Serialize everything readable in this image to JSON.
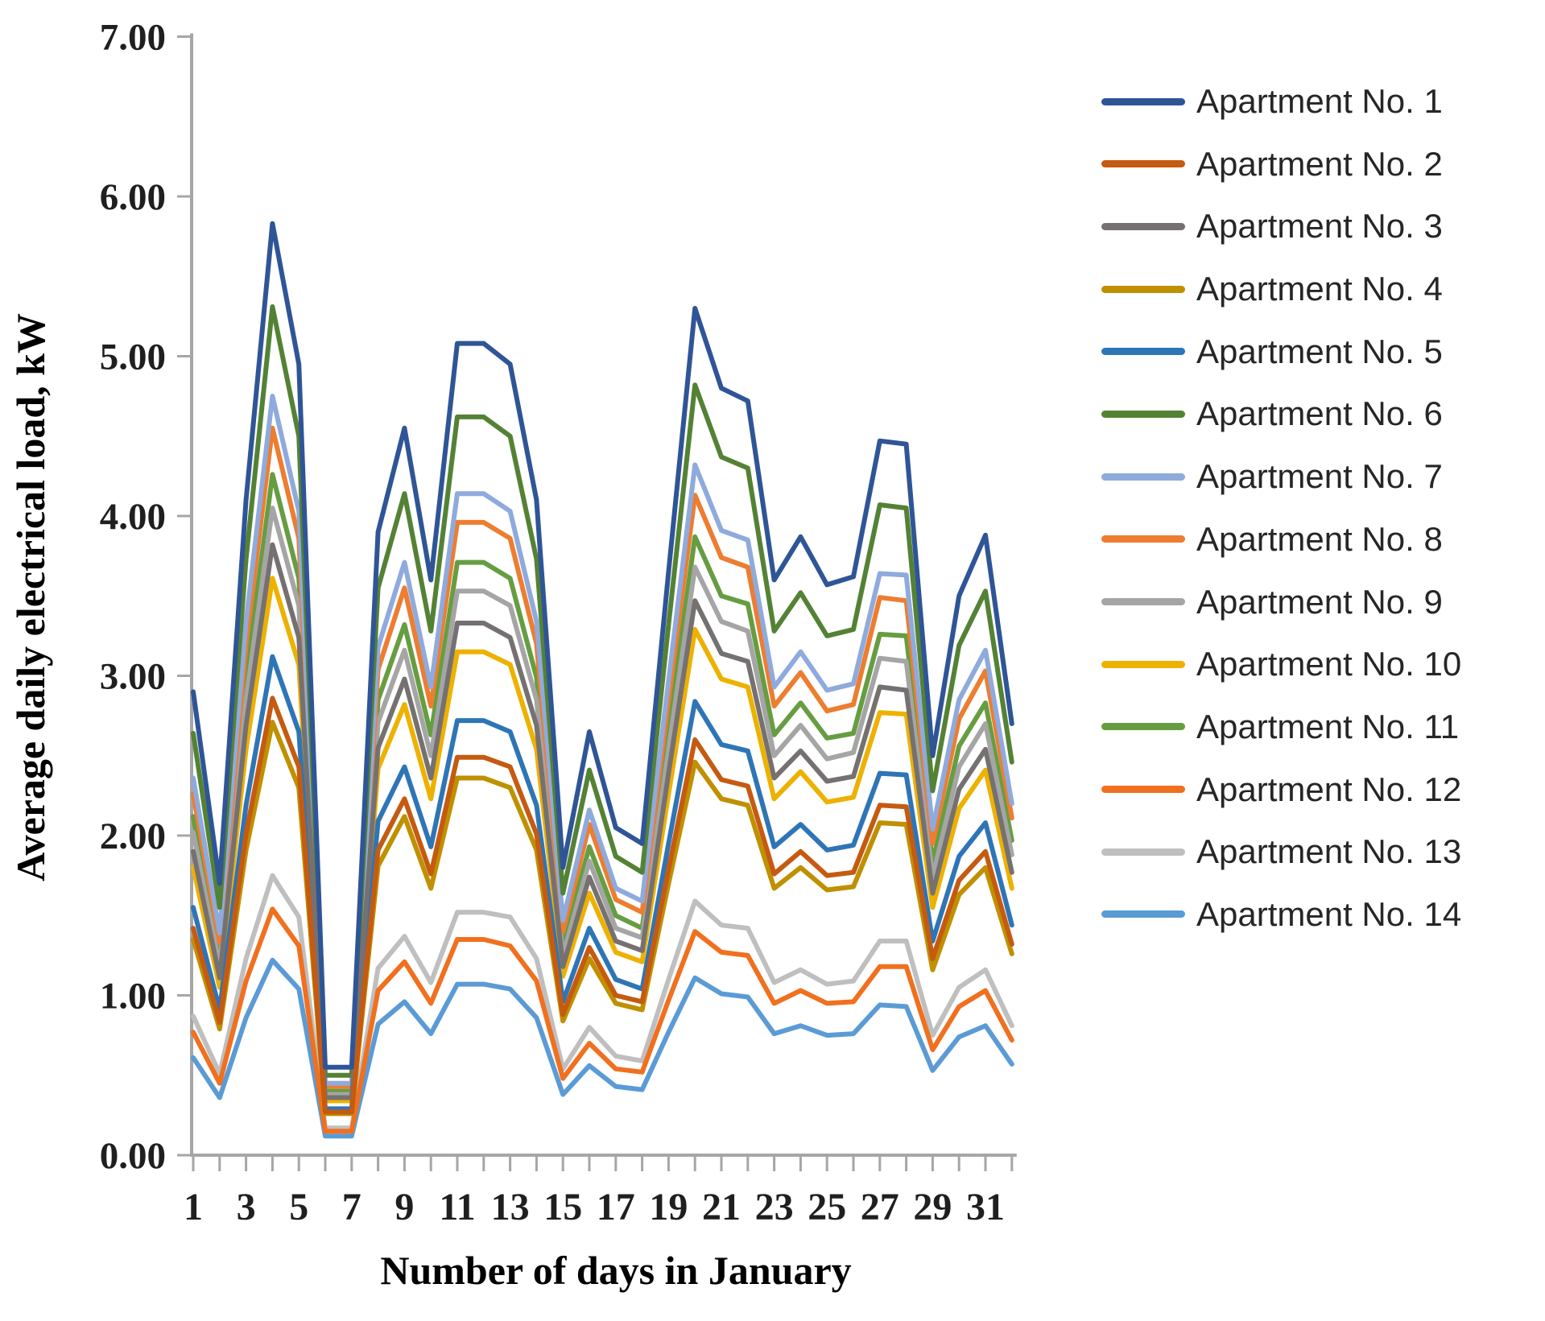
{
  "chart_data": {
    "type": "line",
    "title": "",
    "xlabel": "Number of days in January",
    "ylabel": "Average daily electrical load, kW",
    "x_tick_labels": [
      "1",
      "3",
      "5",
      "7",
      "9",
      "11",
      "13",
      "15",
      "17",
      "19",
      "21",
      "23",
      "25",
      "27",
      "29",
      "31"
    ],
    "y_tick_labels": [
      "0.00",
      "1.00",
      "2.00",
      "3.00",
      "4.00",
      "5.00",
      "6.00",
      "7.00"
    ],
    "ylim": [
      0,
      7
    ],
    "grid": false,
    "legend_position": "right",
    "n_points": 32,
    "axis_color": "#a6a6a6",
    "series": [
      {
        "name": "Apartment No. 1",
        "color": "#2F5597",
        "values": [
          2.9,
          1.7,
          4.1,
          5.83,
          4.95,
          0.55,
          0.55,
          3.9,
          4.55,
          3.6,
          5.08,
          5.08,
          4.95,
          4.1,
          1.8,
          2.65,
          2.05,
          1.95,
          3.65,
          5.3,
          4.8,
          4.72,
          3.6,
          3.87,
          3.57,
          3.62,
          4.47,
          4.45,
          2.5,
          3.5,
          3.88,
          2.7
        ]
      },
      {
        "name": "Apartment No. 2",
        "color": "#C55A11",
        "values": [
          1.42,
          0.83,
          2.01,
          2.86,
          2.43,
          0.27,
          0.27,
          1.91,
          2.23,
          1.76,
          2.49,
          2.49,
          2.43,
          2.01,
          0.88,
          1.3,
          1.0,
          0.96,
          1.79,
          2.6,
          2.35,
          2.31,
          1.76,
          1.9,
          1.75,
          1.77,
          2.19,
          2.18,
          1.23,
          1.72,
          1.9,
          1.32
        ]
      },
      {
        "name": "Apartment No. 3",
        "color": "#767171",
        "values": [
          1.9,
          1.11,
          2.69,
          3.82,
          3.24,
          0.36,
          0.36,
          2.55,
          2.98,
          2.36,
          3.33,
          3.33,
          3.24,
          2.69,
          1.18,
          1.74,
          1.34,
          1.28,
          2.39,
          3.47,
          3.14,
          3.09,
          2.36,
          2.53,
          2.34,
          2.37,
          2.93,
          2.91,
          1.64,
          2.29,
          2.54,
          1.77
        ]
      },
      {
        "name": "Apartment No. 4",
        "color": "#BF9000",
        "values": [
          1.35,
          0.79,
          1.91,
          2.71,
          2.3,
          0.26,
          0.26,
          1.81,
          2.12,
          1.67,
          2.36,
          2.36,
          2.3,
          1.91,
          0.84,
          1.23,
          0.95,
          0.91,
          1.7,
          2.46,
          2.23,
          2.19,
          1.67,
          1.8,
          1.66,
          1.68,
          2.08,
          2.07,
          1.16,
          1.63,
          1.8,
          1.26
        ]
      },
      {
        "name": "Apartment No. 5",
        "color": "#2E75B6",
        "values": [
          1.55,
          0.91,
          2.19,
          3.12,
          2.65,
          0.29,
          0.29,
          2.09,
          2.43,
          1.93,
          2.72,
          2.72,
          2.65,
          2.19,
          0.96,
          1.42,
          1.1,
          1.04,
          1.95,
          2.84,
          2.57,
          2.53,
          1.93,
          2.07,
          1.91,
          1.94,
          2.39,
          2.38,
          1.34,
          1.87,
          2.08,
          1.44
        ]
      },
      {
        "name": "Apartment No. 6",
        "color": "#548235",
        "values": [
          2.64,
          1.55,
          3.73,
          5.31,
          4.5,
          0.5,
          0.5,
          3.55,
          4.14,
          3.28,
          4.62,
          4.62,
          4.5,
          3.73,
          1.64,
          2.41,
          1.87,
          1.77,
          3.32,
          4.82,
          4.37,
          4.3,
          3.28,
          3.52,
          3.25,
          3.29,
          4.07,
          4.05,
          2.28,
          3.19,
          3.53,
          2.46
        ]
      },
      {
        "name": "Apartment No. 7",
        "color": "#8FAADC",
        "values": [
          2.36,
          1.39,
          3.34,
          4.75,
          4.03,
          0.45,
          0.45,
          3.18,
          3.71,
          2.93,
          4.14,
          4.14,
          4.03,
          3.34,
          1.47,
          2.16,
          1.67,
          1.59,
          2.97,
          4.32,
          3.91,
          3.85,
          2.93,
          3.15,
          2.91,
          2.95,
          3.64,
          3.63,
          2.04,
          2.85,
          3.16,
          2.2
        ]
      },
      {
        "name": "Apartment No. 8",
        "color": "#ED7D31",
        "values": [
          2.26,
          1.33,
          3.2,
          4.55,
          3.86,
          0.43,
          0.43,
          3.04,
          3.55,
          2.81,
          3.96,
          3.96,
          3.86,
          3.2,
          1.4,
          2.07,
          1.6,
          1.52,
          2.85,
          4.13,
          3.74,
          3.68,
          2.81,
          3.02,
          2.78,
          2.82,
          3.49,
          3.47,
          1.95,
          2.73,
          3.03,
          2.11
        ]
      },
      {
        "name": "Apartment No. 9",
        "color": "#A5A5A5",
        "values": [
          2.02,
          1.18,
          2.85,
          4.05,
          3.44,
          0.38,
          0.38,
          2.71,
          3.16,
          2.5,
          3.53,
          3.53,
          3.44,
          2.85,
          1.25,
          1.84,
          1.42,
          1.36,
          2.54,
          3.68,
          3.34,
          3.28,
          2.5,
          2.69,
          2.48,
          2.52,
          3.11,
          3.09,
          1.74,
          2.43,
          2.7,
          1.88
        ]
      },
      {
        "name": "Apartment No. 10",
        "color": "#EDB100",
        "values": [
          1.8,
          1.05,
          2.54,
          3.61,
          3.07,
          0.34,
          0.34,
          2.42,
          2.82,
          2.23,
          3.15,
          3.15,
          3.07,
          2.54,
          1.12,
          1.64,
          1.27,
          1.21,
          2.26,
          3.29,
          2.98,
          2.93,
          2.23,
          2.4,
          2.21,
          2.24,
          2.77,
          2.76,
          1.55,
          2.17,
          2.41,
          1.67
        ]
      },
      {
        "name": "Apartment No. 11",
        "color": "#669D41",
        "values": [
          2.12,
          1.24,
          2.99,
          4.26,
          3.61,
          0.4,
          0.4,
          2.85,
          3.32,
          2.63,
          3.71,
          3.71,
          3.61,
          2.99,
          1.31,
          1.93,
          1.5,
          1.42,
          2.66,
          3.87,
          3.5,
          3.45,
          2.63,
          2.83,
          2.61,
          2.64,
          3.26,
          3.25,
          1.83,
          2.56,
          2.83,
          1.97
        ]
      },
      {
        "name": "Apartment No. 12",
        "color": "#F0701F",
        "values": [
          0.77,
          0.45,
          1.09,
          1.54,
          1.31,
          0.15,
          0.15,
          1.03,
          1.21,
          0.95,
          1.35,
          1.35,
          1.31,
          1.09,
          0.48,
          0.7,
          0.54,
          0.52,
          0.97,
          1.4,
          1.27,
          1.25,
          0.95,
          1.03,
          0.95,
          0.96,
          1.18,
          1.18,
          0.66,
          0.93,
          1.03,
          0.72
        ]
      },
      {
        "name": "Apartment No. 13",
        "color": "#BFBFBF",
        "values": [
          0.87,
          0.51,
          1.23,
          1.75,
          1.49,
          0.17,
          0.17,
          1.17,
          1.37,
          1.08,
          1.52,
          1.52,
          1.49,
          1.23,
          0.54,
          0.8,
          0.62,
          0.59,
          1.1,
          1.59,
          1.44,
          1.42,
          1.08,
          1.16,
          1.07,
          1.09,
          1.34,
          1.34,
          0.75,
          1.05,
          1.16,
          0.81
        ]
      },
      {
        "name": "Apartment No. 14",
        "color": "#5B9BD5",
        "values": [
          0.61,
          0.36,
          0.86,
          1.22,
          1.04,
          0.12,
          0.12,
          0.82,
          0.96,
          0.76,
          1.07,
          1.07,
          1.04,
          0.86,
          0.38,
          0.56,
          0.43,
          0.41,
          0.77,
          1.11,
          1.01,
          0.99,
          0.76,
          0.81,
          0.75,
          0.76,
          0.94,
          0.93,
          0.53,
          0.74,
          0.81,
          0.57
        ]
      }
    ]
  }
}
